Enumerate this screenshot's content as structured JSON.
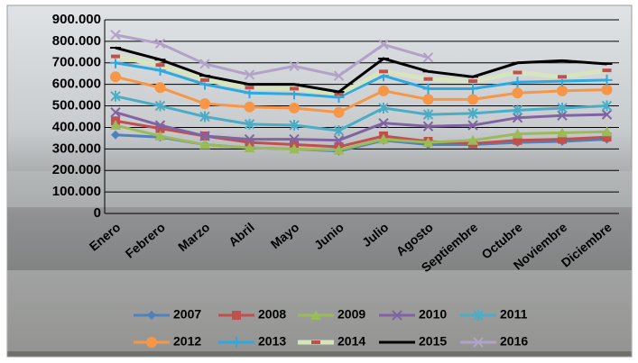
{
  "chart_data": {
    "type": "line",
    "categories": [
      "Enero",
      "Febrero",
      "Marzo",
      "Abril",
      "Mayo",
      "Junio",
      "Julio",
      "Agosto",
      "Septiembre",
      "Octubre",
      "Noviembre",
      "Diciembre"
    ],
    "series": [
      {
        "name": "2007",
        "color": "#4f81bd",
        "values": [
          365000,
          355000,
          320000,
          305000,
          300000,
          290000,
          340000,
          320000,
          320000,
          330000,
          335000,
          345000
        ]
      },
      {
        "name": "2008",
        "color": "#c0504d",
        "values": [
          430000,
          395000,
          360000,
          330000,
          320000,
          310000,
          360000,
          335000,
          325000,
          340000,
          345000,
          355000
        ]
      },
      {
        "name": "2009",
        "color": "#9bbb59",
        "values": [
          410000,
          360000,
          320000,
          305000,
          300000,
          295000,
          345000,
          330000,
          340000,
          370000,
          375000,
          380000
        ]
      },
      {
        "name": "2010",
        "color": "#8064a2",
        "values": [
          470000,
          410000,
          360000,
          345000,
          345000,
          340000,
          420000,
          405000,
          410000,
          445000,
          455000,
          460000
        ]
      },
      {
        "name": "2011",
        "color": "#4bacc6",
        "values": [
          545000,
          500000,
          450000,
          415000,
          410000,
          385000,
          490000,
          460000,
          465000,
          480000,
          490000,
          500000
        ]
      },
      {
        "name": "2012",
        "color": "#f79646",
        "values": [
          635000,
          585000,
          510000,
          495000,
          490000,
          470000,
          570000,
          530000,
          530000,
          560000,
          570000,
          575000
        ]
      },
      {
        "name": "2013",
        "color": "#2ca9e1",
        "values": [
          700000,
          665000,
          600000,
          560000,
          555000,
          540000,
          640000,
          580000,
          580000,
          610000,
          615000,
          620000
        ]
      },
      {
        "name": "2014",
        "color": "#d7e4bd",
        "values": [
          730000,
          690000,
          620000,
          585000,
          580000,
          555000,
          660000,
          625000,
          615000,
          655000,
          635000,
          665000
        ]
      },
      {
        "name": "2015",
        "color": "#000000",
        "values": [
          770000,
          715000,
          640000,
          600000,
          600000,
          565000,
          720000,
          660000,
          635000,
          700000,
          710000,
          695000
        ]
      },
      {
        "name": "2016",
        "color": "#b3a2c7",
        "values": [
          830000,
          790000,
          695000,
          645000,
          685000,
          640000,
          785000,
          725000,
          null,
          null,
          null,
          null
        ]
      }
    ],
    "ylim": [
      0,
      900000
    ],
    "yticks": [
      0,
      {
        "value": 100000,
        "label": "100.000"
      },
      {
        "value": 200000,
        "label": "200.000"
      },
      {
        "value": 300000,
        "label": "300.000"
      },
      {
        "value": 400000,
        "label": "400.000"
      },
      {
        "value": 500000,
        "label": "500.000"
      },
      {
        "value": 600000,
        "label": "600.000"
      },
      {
        "value": 700000,
        "label": "700.000"
      },
      {
        "value": 800000,
        "label": "800.000"
      },
      {
        "value": 900000,
        "label": "900.000"
      }
    ],
    "grid": true
  }
}
